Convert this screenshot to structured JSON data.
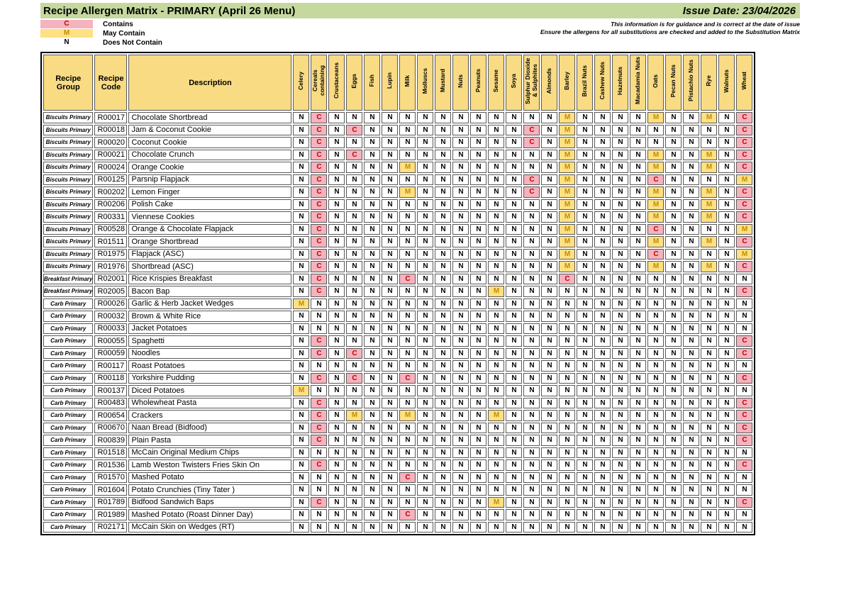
{
  "header": {
    "title": "Recipe Allergen Matrix - PRIMARY (April 26 Menu)",
    "issue_date": "Issue Date: 23/04/2026",
    "notice_line1": "This information is for guidance and is correct at the date of issue",
    "notice_line2": "Ensure the allergens for all substitutions are checked and added to the Substitution Matrix"
  },
  "legend": [
    {
      "symbol": "C",
      "label": "Contains"
    },
    {
      "symbol": "M",
      "label": "May Contain"
    },
    {
      "symbol": "N",
      "label": "Does Not Contain"
    }
  ],
  "colors": {
    "title_bar_green": "#C5D89E",
    "header_tan": "#F9DB84",
    "contains_bg": "#F4B3BE",
    "contains_text": "#C00000",
    "may_contain_bg": "#FFE083",
    "may_contain_text": "#BF8F00",
    "does_not_contain_text": "#000000"
  },
  "table": {
    "fixed_headers": [
      "Recipe Group",
      "Recipe Code",
      "Description"
    ],
    "allergen_headers": [
      "Celery",
      "Cereals containing",
      "Crustaceans",
      "Eggs",
      "Fish",
      "Lupin",
      "Milk",
      "Molluscs",
      "Mustard",
      "Nuts",
      "Peanuts",
      "Sesame",
      "Soya",
      "Sulphur Dioxide & Sulphites",
      "Almonds",
      "Barley",
      "Brazil Nuts",
      "Cashew Nuts",
      "Hazelnuts",
      "Macadamia Nuts",
      "Oats",
      "Pecan Nuts",
      "Pistachio Nuts",
      "Rye",
      "Walnuts",
      "Wheat"
    ],
    "rows": [
      {
        "group": "Biscuits Primary",
        "code": "R00017",
        "description": "Chocolate Shortbread",
        "allergens": "NCNNNNNNNNNNNNNMNNNNMNNMNC"
      },
      {
        "group": "Biscuits Primary",
        "code": "R00018",
        "description": "Jam & Coconut Cookie",
        "allergens": "NCNCNNNNNNNNNCNMNNNNNNNNNC"
      },
      {
        "group": "Biscuits Primary",
        "code": "R00020",
        "description": "Coconut Cookie",
        "allergens": "NCNNNNNNNNNNNCNMNNNNNNNNNC"
      },
      {
        "group": "Biscuits Primary",
        "code": "R00021",
        "description": "Chocolate Crunch",
        "allergens": "NCNCNNNNNNNNNNNMNNNNMNNMNC"
      },
      {
        "group": "Biscuits Primary",
        "code": "R00024",
        "description": "Orange Cookie",
        "allergens": "NCNNNNMNNNNNNNNMNNNNMNNMNC"
      },
      {
        "group": "Biscuits Primary",
        "code": "R00125",
        "description": "Parsnip Flapjack",
        "allergens": "NCNNNNNNNNNNNCNMNNNNCNNNNM"
      },
      {
        "group": "Biscuits Primary",
        "code": "R00202",
        "description": "Lemon Finger",
        "allergens": "NCNNNNMNNNNNNCNMNNNNMNNMNC"
      },
      {
        "group": "Biscuits Primary",
        "code": "R00206",
        "description": "Polish Cake",
        "allergens": "NCNNNNNNNNNNNNNMNNNNMNNMNC"
      },
      {
        "group": "Biscuits Primary",
        "code": "R00331",
        "description": "Viennese Cookies",
        "allergens": "NCNNNNNNNNNNNNNMNNNNMNNMNC"
      },
      {
        "group": "Biscuits Primary",
        "code": "R00528",
        "description": "Orange & Chocolate Flapjack",
        "allergens": "NCNNNNNNNNNNNNNMNNNNCNNNNM"
      },
      {
        "group": "Biscuits Primary",
        "code": "R01511",
        "description": "Orange Shortbread",
        "allergens": "NCNNNNNNNNNNNNNMNNNNMNNMNC"
      },
      {
        "group": "Biscuits Primary",
        "code": "R01975",
        "description": "Flapjack (ASC)",
        "allergens": "NCNNNNNNNNNNNNNMNNNNCNNNNM"
      },
      {
        "group": "Biscuits Primary",
        "code": "R01976",
        "description": "Shortbread (ASC)",
        "allergens": "NCNNNNNNNNNNNNNMNNNNMNNMNC"
      },
      {
        "group": "Breakfast Primary",
        "code": "R02001",
        "description": "Rice Krispies Breakfast",
        "allergens": "NCNNNNCNNNNNNNNCNNNNNNNNNN"
      },
      {
        "group": "Breakfast Primary",
        "code": "R02005",
        "description": "Bacon Bap",
        "allergens": "NCNNNNNNNNNMNNNNNNNNNNNNNC"
      },
      {
        "group": "Carb Primary",
        "code": "R00026",
        "description": "Garlic & Herb Jacket Wedges",
        "allergens": "MNNNNNNNNNNNNNNNNNNNNNNNNN"
      },
      {
        "group": "Carb Primary",
        "code": "R00032",
        "description": "Brown & White Rice",
        "allergens": "NNNNNNNNNNNNNNNNNNNNNNNNNN"
      },
      {
        "group": "Carb Primary",
        "code": "R00033",
        "description": "Jacket Potatoes",
        "allergens": "NNNNNNNNNNNNNNNNNNNNNNNNNN"
      },
      {
        "group": "Carb Primary",
        "code": "R00055",
        "description": "Spaghetti",
        "allergens": "NCNNNNNNNNNNNNNNNNNNNNNNNC"
      },
      {
        "group": "Carb Primary",
        "code": "R00059",
        "description": "Noodles",
        "allergens": "NCNCNNNNNNNNNNNNNNNNNNNNNC"
      },
      {
        "group": "Carb Primary",
        "code": "R00117",
        "description": "Roast Potatoes",
        "allergens": "NNNNNNNNNNNNNNNNNNNNNNNNNN"
      },
      {
        "group": "Carb Primary",
        "code": "R00118",
        "description": "Yorkshire Pudding",
        "allergens": "NCNCNNCNNNNNNNNNNNNNNNNNNC"
      },
      {
        "group": "Carb Primary",
        "code": "R00137",
        "description": "Diced Potatoes",
        "allergens": "MNNNNNNNNNNNNNNNNNNNNNNNNN"
      },
      {
        "group": "Carb Primary",
        "code": "R00483",
        "description": "Wholewheat Pasta",
        "allergens": "NCNNNNNNNNNNNNNNNNNNNNNNNC"
      },
      {
        "group": "Carb Primary",
        "code": "R00654",
        "description": "Crackers",
        "allergens": "NCNMNNMNNNNMNNNNNNNNNNNNNC"
      },
      {
        "group": "Carb Primary",
        "code": "R00670",
        "description": "Naan Bread (Bidfood)",
        "allergens": "NCNNNNNNNNNNNNNNNNNNNNNNNC"
      },
      {
        "group": "Carb Primary",
        "code": "R00839",
        "description": "Plain Pasta",
        "allergens": "NCNNNNNNNNNNNNNNNNNNNNNNNC"
      },
      {
        "group": "Carb Primary",
        "code": "R01518",
        "description": "McCain Original Medium Chips",
        "allergens": "NNNNNNNNNNNNNNNNNNNNNNNNNN"
      },
      {
        "group": "Carb Primary",
        "code": "R01536",
        "description": "Lamb Weston Twisters Fries Skin On",
        "allergens": "NCNNNNNNNNNNNNNNNNNNNNNNNC"
      },
      {
        "group": "Carb Primary",
        "code": "R01570",
        "description": "Mashed Potato",
        "allergens": "NNNNNNCNNNNNNNNNNNNNNNNNNN"
      },
      {
        "group": "Carb Primary",
        "code": "R01604",
        "description": "Potato Crunchies (Tiny Tater )",
        "allergens": "NNNNNNNNNNNNNNNNNNNNNNNNNN"
      },
      {
        "group": "Carb Primary",
        "code": "R01789",
        "description": "Bidfood Sandwich Baps",
        "allergens": "NCNNNNNNNNNMNNNNNNNNNNNNNC"
      },
      {
        "group": "Carb Primary",
        "code": "R01989",
        "description": "Mashed Potato (Roast Dinner Day)",
        "allergens": "NNNNNNCNNNNNNNNNNNNNNNNNNN"
      },
      {
        "group": "Carb Primary",
        "code": "R02171",
        "description": "McCain Skin on Wedges (RT)",
        "allergens": "NNNNNNNNNNNNNNNNNNNNNNNNNN"
      }
    ]
  }
}
